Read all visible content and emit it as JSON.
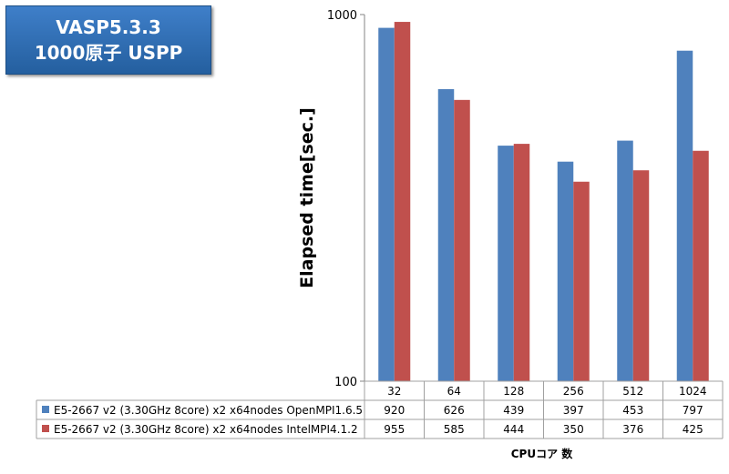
{
  "title": {
    "line1": "VASP5.3.3",
    "line2": "1000原子 USPP"
  },
  "chart_data": {
    "type": "bar",
    "categories": [
      "32",
      "64",
      "128",
      "256",
      "512",
      "1024"
    ],
    "series": [
      {
        "name": "E5-2667 v2 (3.30GHz 8core) x2 x64nodes OpenMPI1.6.5",
        "color": "#4f81bd",
        "values": [
          920,
          626,
          439,
          397,
          453,
          797
        ]
      },
      {
        "name": "E5-2667 v2 (3.30GHz 8core) x2 x64nodes IntelMPI4.1.2",
        "color": "#c0504d",
        "values": [
          955,
          585,
          444,
          350,
          376,
          425
        ]
      }
    ],
    "ylabel": "Elapsed time[sec.]",
    "xlabel": "CPUコア 数",
    "ylim": [
      100,
      1000
    ],
    "yscale": "log",
    "ytick_labels": [
      "100",
      "1000"
    ],
    "grid": false,
    "legend": "data table below chart"
  }
}
